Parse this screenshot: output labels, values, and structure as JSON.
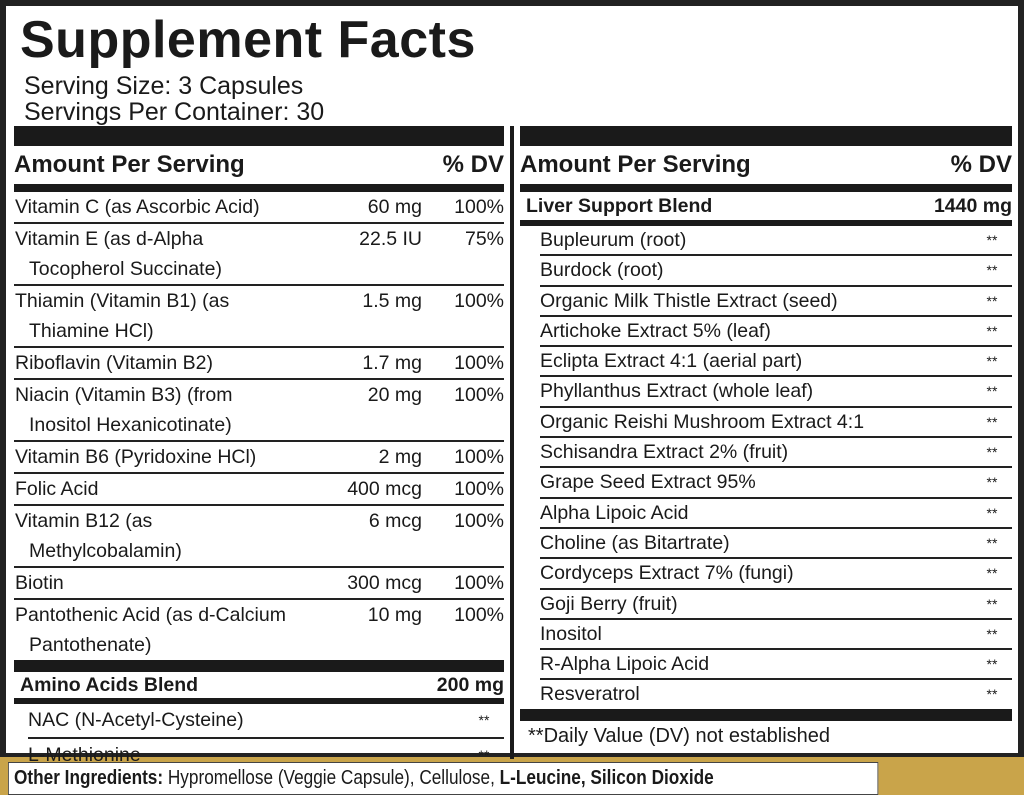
{
  "title": "Supplement Facts",
  "serving_size": "Serving Size: 3 Capsules",
  "servings_per_container": "Servings Per Container: 30",
  "left": {
    "header": {
      "amount": "Amount Per Serving",
      "dv": "% DV"
    },
    "rows": [
      {
        "name": "Vitamin C (as Ascorbic Acid)",
        "name2": "",
        "amount": "60 mg",
        "dv": "100%"
      },
      {
        "name": "Vitamin E (as d-Alpha",
        "name2": "Tocopherol Succinate)",
        "amount": "22.5 IU",
        "dv": "75%"
      },
      {
        "name": "Thiamin (Vitamin B1) (as",
        "name2": "Thiamine HCl)",
        "amount": "1.5 mg",
        "dv": "100%"
      },
      {
        "name": "Riboflavin (Vitamin B2)",
        "name2": "",
        "amount": "1.7 mg",
        "dv": "100%"
      },
      {
        "name": "Niacin (Vitamin B3) (from",
        "name2": "Inositol Hexanicotinate)",
        "amount": "20 mg",
        "dv": "100%"
      },
      {
        "name": "Vitamin B6 (Pyridoxine HCl)",
        "name2": "",
        "amount": "2 mg",
        "dv": "100%"
      },
      {
        "name": "Folic Acid",
        "name2": "",
        "amount": "400 mcg",
        "dv": "100%"
      },
      {
        "name": "Vitamin B12 (as",
        "name2": "Methylcobalamin)",
        "amount": "6 mcg",
        "dv": "100%"
      },
      {
        "name": "Biotin",
        "name2": "",
        "amount": "300 mcg",
        "dv": "100%"
      },
      {
        "name": "Pantothenic Acid (as d-Calcium",
        "name2": "Pantothenate)",
        "amount": "10 mg",
        "dv": "100%"
      }
    ],
    "blend": {
      "name": "Amino Acids Blend",
      "amount": "200 mg",
      "items": [
        {
          "name": "NAC (N-Acetyl-Cysteine)",
          "dv": "**"
        },
        {
          "name": "L-Methionine",
          "dv": "**"
        }
      ]
    }
  },
  "right": {
    "header": {
      "amount": "Amount Per Serving",
      "dv": "% DV"
    },
    "blend": {
      "name": "Liver Support Blend",
      "amount": "1440 mg",
      "items": [
        {
          "name": "Bupleurum (root)",
          "dv": "**"
        },
        {
          "name": "Burdock (root)",
          "dv": "**"
        },
        {
          "name": "Organic Milk Thistle Extract (seed)",
          "dv": "**"
        },
        {
          "name": "Artichoke Extract 5% (leaf)",
          "dv": "**"
        },
        {
          "name": "Eclipta Extract 4:1 (aerial part)",
          "dv": "**"
        },
        {
          "name": "Phyllanthus Extract (whole leaf)",
          "dv": "**"
        },
        {
          "name": "Organic Reishi Mushroom Extract 4:1",
          "dv": "**"
        },
        {
          "name": "Schisandra Extract 2% (fruit)",
          "dv": "**"
        },
        {
          "name": "Grape Seed Extract 95%",
          "dv": "**"
        },
        {
          "name": "Alpha Lipoic Acid",
          "dv": "**"
        },
        {
          "name": "Choline (as Bitartrate)",
          "dv": "**"
        },
        {
          "name": "Cordyceps Extract 7% (fungi)",
          "dv": "**"
        },
        {
          "name": "Goji Berry (fruit)",
          "dv": "**"
        },
        {
          "name": "Inositol",
          "dv": "**"
        },
        {
          "name": "R-Alpha Lipoic Acid",
          "dv": "**"
        },
        {
          "name": "Resveratrol",
          "dv": "**"
        }
      ]
    },
    "footnote": "**Daily Value (DV) not established"
  },
  "other_ingredients": {
    "label": "Other Ingredients:",
    "text": " Hypromellose (Veggie Capsule), Cellulose, ",
    "bold_items": "L-Leucine, Silicon Dioxide"
  }
}
